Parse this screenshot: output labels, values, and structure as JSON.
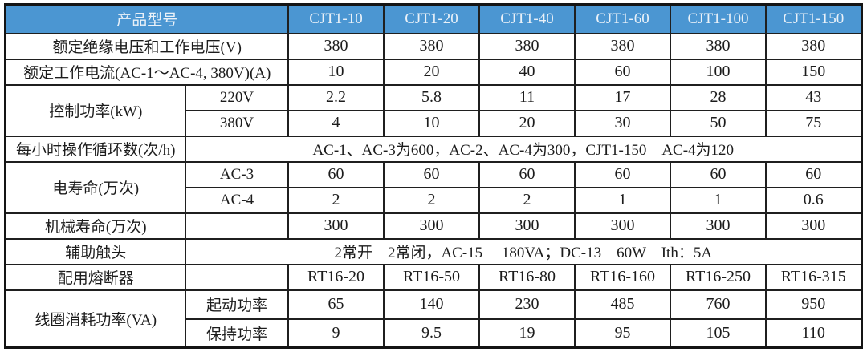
{
  "table": {
    "header": {
      "product_model_label": "产品型号",
      "models": [
        "CJT1-10",
        "CJT1-20",
        "CJT1-40",
        "CJT1-60",
        "CJT1-100",
        "CJT1-150"
      ]
    },
    "rated_voltage": {
      "label": "额定绝缘电压和工作电压(V)",
      "values": [
        "380",
        "380",
        "380",
        "380",
        "380",
        "380"
      ]
    },
    "rated_current": {
      "label": "额定工作电流(AC-1～AC-4, 380V)(A)",
      "values": [
        "10",
        "20",
        "40",
        "60",
        "100",
        "150"
      ]
    },
    "control_power": {
      "label": "控制功率(kW)",
      "rows": [
        {
          "sub_label": "220V",
          "values": [
            "2.2",
            "5.8",
            "11",
            "17",
            "28",
            "43"
          ]
        },
        {
          "sub_label": "380V",
          "values": [
            "4",
            "10",
            "20",
            "30",
            "50",
            "75"
          ]
        }
      ]
    },
    "cycles_per_hour": {
      "label": "每小时操作循环数(次/h)",
      "merged_text": "AC-1、AC-3为600，AC-2、AC-4为300，CJT1-150　AC-4为120"
    },
    "electrical_life": {
      "label": "电寿命(万次)",
      "rows": [
        {
          "sub_label": "AC-3",
          "values": [
            "60",
            "60",
            "60",
            "60",
            "60",
            "60"
          ]
        },
        {
          "sub_label": "AC-4",
          "values": [
            "2",
            "2",
            "2",
            "1",
            "1",
            "0.6"
          ]
        }
      ]
    },
    "mechanical_life": {
      "label": "机械寿命(万次)",
      "sub_label": "",
      "values": [
        "300",
        "300",
        "300",
        "300",
        "300",
        "300"
      ]
    },
    "auxiliary_contacts": {
      "label": "辅助触头",
      "merged_text": "2常开　2常闭，AC-15　 180VA；DC-13　60W　Ith：5A"
    },
    "fuse": {
      "label": "配用熔断器",
      "sub_label": "",
      "values": [
        "RT16-20",
        "RT16-50",
        "RT16-80",
        "RT16-160",
        "RT16-250",
        "RT16-315"
      ]
    },
    "coil_power": {
      "label": "线圈消耗功率(VA)",
      "rows": [
        {
          "sub_label": "起动功率",
          "values": [
            "65",
            "140",
            "230",
            "485",
            "760",
            "950"
          ]
        },
        {
          "sub_label": "保持功率",
          "values": [
            "9",
            "9.5",
            "19",
            "95",
            "105",
            "110"
          ]
        }
      ]
    }
  },
  "colors": {
    "header_bg": "#4B96D2",
    "header_text": "#EAF1F8",
    "border": "#1F1F1F",
    "cell_text": "#1C1C1C",
    "background": "#FFFFFF"
  }
}
